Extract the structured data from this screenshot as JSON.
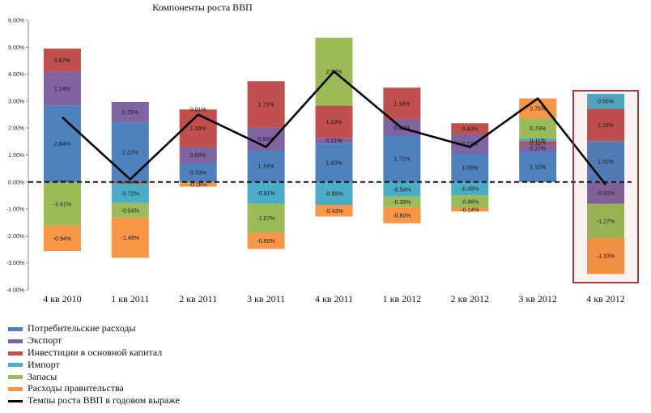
{
  "chart_data": {
    "type": "bar",
    "stacked": true,
    "title": "Компоненты роста ВВП",
    "categories": [
      "4 кв 2010",
      "1 кв 2011",
      "2 кв 2011",
      "3 кв 2011",
      "4 кв 2011",
      "1 кв 2012",
      "2 кв 2012",
      "3 кв  2012",
      "4 кв 2012"
    ],
    "ylim": [
      -4,
      6
    ],
    "yticks": [
      "-4.00%",
      "-3.00%",
      "-2.00%",
      "-1.00%",
      "0.00%",
      "1.00%",
      "2.00%",
      "3.00%",
      "4.00%",
      "5.00%",
      "6.00%"
    ],
    "series": [
      {
        "name": "Потребительские расходы",
        "color": "#4F81BD",
        "values": [
          2.84,
          2.22,
          0.7,
          1.18,
          1.43,
          1.72,
          1.06,
          1.12,
          1.52
        ],
        "labels": [
          "2.84%",
          "2.22%",
          "0.70%",
          "1.18%",
          "1.43%",
          "1.72%",
          "1.06%",
          "1.12%",
          "1.52%"
        ]
      },
      {
        "name": "Экспорт",
        "color": "#8064A2",
        "values": [
          1.24,
          0.75,
          0.6,
          0.83,
          0.21,
          0.6,
          0.72,
          0.27,
          -0.81
        ],
        "labels": [
          "1.24%",
          "0.75%",
          "0.60%",
          "0.83%",
          "0.21%",
          "0.60%",
          "0.72%",
          "0.27%",
          "-0.81%"
        ]
      },
      {
        "name": "Инвестиции в основной капитал",
        "color": "#C0504D",
        "values": [
          0.87,
          -0.06,
          1.39,
          1.73,
          1.19,
          1.18,
          0.4,
          0.12,
          1.19
        ],
        "labels": [
          "0.87%",
          "-0.06%",
          "1.39%",
          "1.73%",
          "1.19%",
          "1.18%",
          "0.40%",
          "0.12%",
          "1.19%"
        ]
      },
      {
        "name": "Импорт",
        "color": "#4BACC6",
        "values": [
          -0.01,
          -0.72,
          -0.01,
          -0.81,
          -0.85,
          -0.54,
          -0.49,
          0.11,
          0.56
        ],
        "labels": [
          "-0.01%",
          "-0.72%",
          "",
          "-0.81%",
          "-0.85%",
          "-0.54%",
          "-0.49%",
          "0.11%",
          "0.56%"
        ]
      },
      {
        "name": "Запасы",
        "color": "#9BBB59",
        "values": [
          -1.61,
          -0.54,
          0.01,
          -1.07,
          2.52,
          -0.39,
          -0.46,
          0.73,
          -1.27
        ],
        "labels": [
          "-1.61%",
          "-0.54%",
          "0.01%",
          "-1.07%",
          "2.52%",
          "-0.39%",
          "-0.46%",
          "0.73%",
          "-1.27%"
        ]
      },
      {
        "name": "Расходы правительства",
        "color": "#F79646",
        "values": [
          -0.94,
          -1.49,
          -0.16,
          -0.6,
          -0.43,
          -0.6,
          -0.14,
          0.75,
          -1.33
        ],
        "labels": [
          "-0.94%",
          "-1.49%",
          "-0.16%",
          "-0.60%",
          "-0.43%",
          "-0.60%",
          "-0.14%",
          "0.75%",
          "-1.33%"
        ]
      }
    ],
    "line": {
      "name": "Темпы роста ВВП в годовом выраже",
      "color": "#000000",
      "values": [
        2.4,
        0.1,
        2.5,
        1.3,
        4.1,
        2.0,
        1.3,
        3.1,
        -0.1
      ]
    },
    "zero_line": "dashed",
    "highlight": {
      "category": "4 кв 2012",
      "color": "#A02828"
    }
  }
}
